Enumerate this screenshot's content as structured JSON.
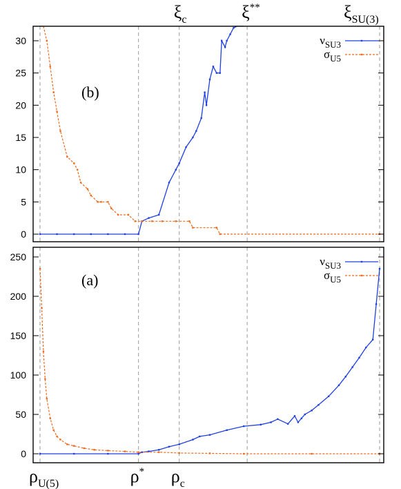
{
  "chart_data": [
    {
      "type": "line",
      "panel_label": "(b)",
      "ylim": [
        -1,
        32
      ],
      "y_ticks": [
        "0",
        "5",
        "10",
        "15",
        "20",
        "25",
        "30"
      ],
      "y_tick_values": [
        0,
        5,
        10,
        15,
        20,
        25,
        30
      ],
      "vlines": [
        0.0,
        0.29,
        0.41,
        0.61,
        1.0
      ],
      "top_labels": [
        {
          "id": "xi_c",
          "main": "ξ",
          "sub": "c",
          "sup": "",
          "x": 0.41
        },
        {
          "id": "xi_ss",
          "main": "ξ",
          "sub": "",
          "sup": "**",
          "x": 0.61
        },
        {
          "id": "xi_su3",
          "main": "ξ",
          "sub": "SU(3)",
          "sup": "",
          "x": 1.0
        }
      ],
      "legend": [
        {
          "main": "ν",
          "sub": "SU3"
        },
        {
          "main": "σ",
          "sub": "U5"
        }
      ],
      "series": [
        {
          "color": "#1f3fe0",
          "x": [
            0.0,
            0.05,
            0.1,
            0.15,
            0.2,
            0.25,
            0.29,
            0.3,
            0.32,
            0.35,
            0.38,
            0.4,
            0.41,
            0.43,
            0.45,
            0.46,
            0.475,
            0.485,
            0.49,
            0.5,
            0.51,
            0.52,
            0.53,
            0.535,
            0.545,
            0.55,
            0.56,
            0.57,
            0.58,
            0.59,
            0.6
          ],
          "values": [
            0,
            0,
            0,
            0,
            0,
            0,
            0,
            2,
            2.5,
            3,
            8,
            10,
            11,
            13.5,
            15,
            16,
            18,
            22,
            20,
            24,
            26,
            25,
            25,
            30,
            29,
            30,
            31,
            32,
            33,
            33,
            33
          ]
        },
        {
          "color": "#ee6a1e",
          "x": [
            0.0,
            0.01,
            0.02,
            0.03,
            0.04,
            0.05,
            0.06,
            0.08,
            0.1,
            0.11,
            0.12,
            0.14,
            0.15,
            0.17,
            0.18,
            0.2,
            0.21,
            0.23,
            0.26,
            0.28,
            0.3,
            0.33,
            0.36,
            0.4,
            0.44,
            0.45,
            0.52,
            0.53,
            1.0
          ],
          "values": [
            40,
            34,
            30,
            26,
            22,
            19,
            16,
            12,
            11,
            10,
            8,
            7,
            6,
            5,
            5,
            5,
            4,
            3,
            3,
            2,
            2,
            2,
            2,
            2,
            2,
            1,
            1,
            0,
            0
          ]
        }
      ]
    },
    {
      "type": "line",
      "panel_label": "(a)",
      "ylim": [
        -5,
        255
      ],
      "y_ticks": [
        "0",
        "50",
        "100",
        "150",
        "200",
        "250"
      ],
      "y_tick_values": [
        0,
        50,
        100,
        150,
        200,
        250
      ],
      "vlines": [
        0.0,
        0.29,
        0.41,
        0.61,
        1.0
      ],
      "bottom_labels": [
        {
          "id": "rho_u5",
          "main": "ρ",
          "sub": "U(5)",
          "sup": "",
          "x": 0.0
        },
        {
          "id": "rho_star",
          "main": "ρ",
          "sub": "",
          "sup": "*",
          "x": 0.29
        },
        {
          "id": "rho_c",
          "main": "ρ",
          "sub": "c",
          "sup": "",
          "x": 0.41
        }
      ],
      "legend": [
        {
          "main": "ν",
          "sub": "SU3"
        },
        {
          "main": "σ",
          "sub": "U5"
        }
      ],
      "series": [
        {
          "color": "#1f3fe0",
          "x": [
            0.0,
            0.1,
            0.2,
            0.29,
            0.3,
            0.32,
            0.35,
            0.38,
            0.41,
            0.45,
            0.47,
            0.5,
            0.55,
            0.6,
            0.65,
            0.68,
            0.7,
            0.73,
            0.75,
            0.76,
            0.77,
            0.78,
            0.8,
            0.82,
            0.85,
            0.88,
            0.9,
            0.92,
            0.94,
            0.96,
            0.98,
            0.99,
            1.0
          ],
          "values": [
            0,
            0,
            0,
            0,
            2,
            3,
            5,
            9,
            12,
            18,
            22,
            24,
            30,
            35,
            37,
            40,
            44,
            38,
            48,
            40,
            45,
            50,
            55,
            62,
            73,
            87,
            98,
            110,
            122,
            135,
            145,
            190,
            235
          ]
        },
        {
          "color": "#ee6a1e",
          "x": [
            0.0,
            0.005,
            0.01,
            0.015,
            0.02,
            0.03,
            0.04,
            0.05,
            0.06,
            0.08,
            0.1,
            0.13,
            0.16,
            0.2,
            0.25,
            0.29,
            0.35,
            0.41,
            0.5,
            0.6,
            0.8,
            1.0
          ],
          "values": [
            235,
            185,
            130,
            95,
            70,
            45,
            30,
            22,
            18,
            12,
            10,
            7,
            5,
            4,
            3,
            2,
            2,
            1,
            0.5,
            0,
            0,
            0
          ]
        }
      ]
    }
  ],
  "colors": {
    "nu": "#1f3fe0",
    "sigma": "#ee6a1e",
    "grid": "#9a9a9a",
    "frame": "#000000"
  }
}
